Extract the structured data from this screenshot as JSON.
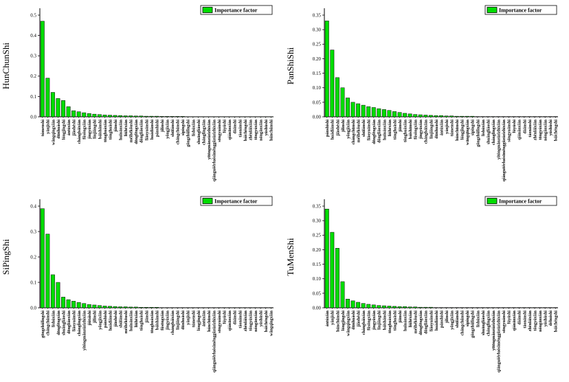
{
  "page": {
    "background": "#ffffff"
  },
  "legend_label": "Importance factor",
  "bar_color": "#00dd00",
  "chart_data": [
    {
      "type": "bar",
      "name": "HunChunShi",
      "legend": "Importance factor",
      "bar_color": "#00dd00",
      "ylim": [
        0,
        0.5
      ],
      "ytick_step": 0.1,
      "ytick_decimals": 1,
      "grid": false,
      "legend_position": "top-right",
      "categories": [
        "túmenshì",
        "yánjíshì",
        "wāngqīngxiàn",
        "dūnhuàshì",
        "lóngjǐngshì",
        "ántúxiàn",
        "jiāohéshì",
        "chángbáixiàn",
        "fǔsōngxiàn",
        "jìngyǔxiàn",
        "línjiāngshì",
        "báishānshì",
        "tōnghuàxiàn",
        "tōnghuàshì",
        "jíānshì",
        "huīnánxiàn",
        "liǔhéxiàn",
        "méihékǒushì",
        "dōngfēngxiàn",
        "dōngliáoxiàn",
        "liáoyuánshì",
        "huàdiànshì",
        "pánshíshì",
        "jílínshì",
        "yǒngjíxiàn",
        "shūlánshì",
        "chángchūnshì",
        "sìpíngshì",
        "gōngzhǔlǐngshì",
        "líshùxiàn",
        "shuāngliáoshì",
        "chánglǐngxiàn",
        "yītōngmǎnzúzìzhìxiàn",
        "qiánguōěrluósīměnggǔzúzìzhìxiàn",
        "sōngyuánshì",
        "fúyúshì",
        "qiánānxiàn",
        "dàānshì",
        "táonánshì",
        "báichéngshì",
        "zhènláixiàn",
        "tōngyúxiàn",
        "nóngānxiàn",
        "yúshùshì",
        "húnchūnshì"
      ],
      "values": [
        0.47,
        0.19,
        0.12,
        0.09,
        0.08,
        0.05,
        0.03,
        0.025,
        0.02,
        0.016,
        0.013,
        0.011,
        0.009,
        0.008,
        0.007,
        0.006,
        0.005,
        0.005,
        0.004,
        0.004,
        0.003,
        0.003,
        0.003,
        0.002,
        0.002,
        0.002,
        0.002,
        0.002,
        0.001,
        0.001,
        0.001,
        0.001,
        0.001,
        0.001,
        0.001,
        0.001,
        0.001,
        0.001,
        0.001,
        0.001,
        0.001,
        0.001,
        0.001,
        0.001,
        0.001
      ]
    },
    {
      "type": "bar",
      "name": "PanShiShi",
      "legend": "Importance factor",
      "bar_color": "#00dd00",
      "ylim": [
        0,
        0.35
      ],
      "ytick_step": 0.05,
      "ytick_decimals": 2,
      "grid": false,
      "legend_position": "top-right",
      "categories": [
        "pánshíshì",
        "huàdiànshì",
        "jiāohéshì",
        "jílínshì",
        "yǒngjíxiàn",
        "chángchūnshì",
        "méihékǒushì",
        "shūlánshì",
        "liáoyuánshì",
        "dōngfēngxiàn",
        "dōngliáoxiàn",
        "huīnánxiàn",
        "liǔhéxiàn",
        "tōnghuàshì",
        "jíānshì",
        "tōnghuàxiàn",
        "báishānshì",
        "fǔsōngxiàn",
        "jìngyǔxiàn",
        "chángbáixiàn",
        "línjiāngshì",
        "dūnhuàshì",
        "ántúxiàn",
        "yánjíshì",
        "túmenshì",
        "húnchūnshì",
        "lóngjǐngshì",
        "wāngqīngxiàn",
        "sìpíngshì",
        "gōngzhǔlǐngshì",
        "líshùxiàn",
        "shuāngliáoshì",
        "chánglǐngxiàn",
        "yītōngmǎnzúzìzhìxiàn",
        "qiánguōěrluósīměnggǔzúzìzhìxiàn",
        "sōngyuánshì",
        "fúyúshì",
        "qiánānxiàn",
        "dàānshì",
        "táonánshì",
        "zhènláixiàn",
        "tōngyúxiàn",
        "nóngānxiàn",
        "yúshùshì",
        "báichéngshì"
      ],
      "values": [
        0.33,
        0.23,
        0.135,
        0.1,
        0.065,
        0.05,
        0.045,
        0.04,
        0.035,
        0.032,
        0.028,
        0.025,
        0.022,
        0.018,
        0.015,
        0.012,
        0.01,
        0.008,
        0.007,
        0.006,
        0.005,
        0.004,
        0.004,
        0.003,
        0.003,
        0.002,
        0.002,
        0.002,
        0.002,
        0.001,
        0.001,
        0.001,
        0.001,
        0.001,
        0.001,
        0.001,
        0.001,
        0.001,
        0.001,
        0.001,
        0.001,
        0.001,
        0.001,
        0.001,
        0.001
      ]
    },
    {
      "type": "bar",
      "name": "SiPingShi",
      "legend": "Importance factor",
      "bar_color": "#00dd00",
      "ylim": [
        0,
        0.4
      ],
      "ytick_step": 0.1,
      "ytick_decimals": 1,
      "grid": false,
      "legend_position": "top-right",
      "categories": [
        "gōngzhǔlǐngshì",
        "chángchūnshì",
        "líshùxiàn",
        "dōngfēngxiàn",
        "shuāngliáoshì",
        "dōngliáoxiàn",
        "liáoyuánshì",
        "chánglǐngxiàn",
        "yītōngmǎnzúzìzhìxiàn",
        "jiǔtáishì",
        "jílínshì",
        "yǒngjíxiàn",
        "pánshíshì",
        "huàdiànshì",
        "jiāohéshì",
        "shūlánshì",
        "méihékǒushì",
        "huīnánxiàn",
        "liǔhéxiàn",
        "tōnghuàshì",
        "jíānshì",
        "tōnghuàxiàn",
        "báishānshì",
        "fǔsōngxiàn",
        "jìngyǔxiàn",
        "chángbáixiàn",
        "línjiāngshì",
        "dūnhuàshì",
        "yánjíshì",
        "túmenshì",
        "lóngjǐngshì",
        "ántúxiàn",
        "húnchūnshì",
        "qiánguōěrluósīměnggǔzúzìzhìxiàn",
        "sōngyuánshì",
        "fúyúshì",
        "qiánānxiàn",
        "dàānshì",
        "táonánshì",
        "zhènláixiàn",
        "tōngyúxiàn",
        "nóngānxiàn",
        "yúshùshì",
        "báichéngshì",
        "wāngqīngxiàn"
      ],
      "values": [
        0.39,
        0.29,
        0.13,
        0.1,
        0.042,
        0.032,
        0.026,
        0.021,
        0.017,
        0.013,
        0.011,
        0.009,
        0.007,
        0.006,
        0.005,
        0.004,
        0.004,
        0.003,
        0.003,
        0.002,
        0.002,
        0.002,
        0.002,
        0.001,
        0.001,
        0.001,
        0.001,
        0.001,
        0.001,
        0.001,
        0.001,
        0.001,
        0.001,
        0.001,
        0.001,
        0.001,
        0.001,
        0.001,
        0.001,
        0.001,
        0.001,
        0.001,
        0.001,
        0.001,
        0.001
      ]
    },
    {
      "type": "bar",
      "name": "TuMenShi",
      "legend": "Importance factor",
      "bar_color": "#00dd00",
      "ylim": [
        0,
        0.35
      ],
      "ytick_step": 0.05,
      "ytick_decimals": 2,
      "grid": false,
      "legend_position": "top-right",
      "categories": [
        "ántúxiàn",
        "yánjíshì",
        "húnchūnshì",
        "lóngjǐngshì",
        "wāngqīngxiàn",
        "dūnhuàshì",
        "jiāohéshì",
        "chángbáixiàn",
        "fǔsōngxiàn",
        "jìngyǔxiàn",
        "línjiāngshì",
        "báishānshì",
        "tōnghuàxiàn",
        "tōnghuàshì",
        "jíānshì",
        "huīnánxiàn",
        "liǔhéxiàn",
        "méihékǒushì",
        "dōngfēngxiàn",
        "dōngliáoxiàn",
        "liáoyuánshì",
        "huàdiànshì",
        "pánshíshì",
        "jílínshì",
        "yǒngjíxiàn",
        "shūlánshì",
        "chángchūnshì",
        "sìpíngshì",
        "gōngzhǔlǐngshì",
        "líshùxiàn",
        "shuāngliáoshì",
        "chánglǐngxiàn",
        "yītōngmǎnzúzìzhìxiàn",
        "qiánguōěrluósīměnggǔzúzìzhìxiàn",
        "sōngyuánshì",
        "fúyúshì",
        "qiánānxiàn",
        "dàānshì",
        "táonánshì",
        "zhènláixiàn",
        "tōngyúxiàn",
        "nóngānxiàn",
        "yúshùshì",
        "déhuìshì",
        "báichéngshì"
      ],
      "values": [
        0.34,
        0.26,
        0.205,
        0.09,
        0.03,
        0.024,
        0.019,
        0.015,
        0.012,
        0.01,
        0.008,
        0.007,
        0.006,
        0.005,
        0.004,
        0.004,
        0.003,
        0.003,
        0.002,
        0.002,
        0.002,
        0.001,
        0.001,
        0.001,
        0.001,
        0.001,
        0.001,
        0.001,
        0.001,
        0.001,
        0.001,
        0.001,
        0.001,
        0.001,
        0.001,
        0.001,
        0.001,
        0.001,
        0.001,
        0.001,
        0.001,
        0.001,
        0.001,
        0.001,
        0.001
      ]
    }
  ]
}
